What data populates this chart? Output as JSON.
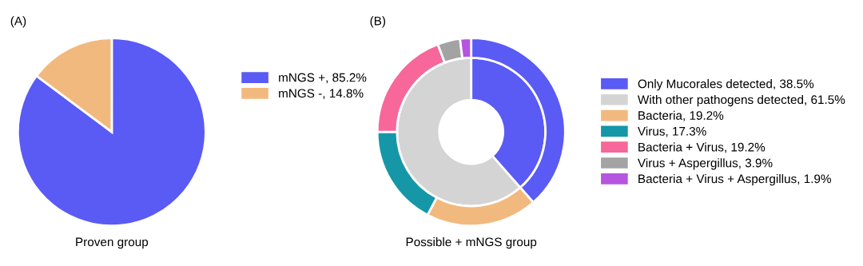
{
  "chart_data": [
    {
      "type": "pie",
      "title": "(A)",
      "xlabel": "Proven group",
      "categories": [
        "mNGS +, 85.2%",
        "mNGS -, 14.8%"
      ],
      "values": [
        85.2,
        14.8
      ],
      "colors": [
        "#5a5af5",
        "#f2b97e"
      ],
      "legend": "top right"
    },
    {
      "type": "donut",
      "title": "(B)",
      "xlabel": "Possible + mNGS group",
      "categories": [
        "Only Mucorales detected, 38.5%",
        "With other pathogens detected, 61.5%",
        "Bacteria, 19.2%",
        "Virus, 17.3%",
        "Bacteria + Virus, 19.2%",
        "Virus + Aspergillus, 3.9%",
        "Bacteria + Virus + Aspergillus, 1.9%"
      ],
      "colors": [
        "#5a5af5",
        "#d4d4d4",
        "#f2b97e",
        "#1597a8",
        "#f76799",
        "#a3a3a3",
        "#b555e0"
      ],
      "legend": "right",
      "series": [
        {
          "values": [
            38.5,
            61.5,
            null,
            null,
            null,
            null,
            null
          ]
        },
        {
          "values": [
            38.5,
            null,
            19.2,
            17.3,
            19.2,
            3.9,
            1.9
          ]
        }
      ]
    }
  ]
}
